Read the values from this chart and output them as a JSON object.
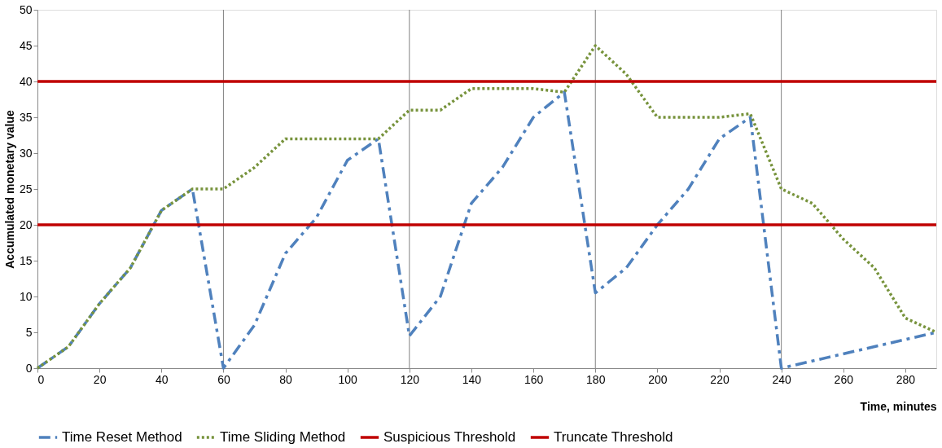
{
  "chart_data": {
    "type": "line",
    "xlabel": "Time, minutes",
    "ylabel": "Accumulated monetary value",
    "xlim": [
      0,
      290
    ],
    "xticks": [
      0,
      20,
      40,
      60,
      80,
      100,
      120,
      140,
      160,
      180,
      200,
      220,
      240,
      260,
      280
    ],
    "ylim": [
      0,
      50
    ],
    "yticks": [
      0,
      5,
      10,
      15,
      20,
      25,
      30,
      35,
      40,
      45,
      50
    ],
    "grid": false,
    "legend": "bottom",
    "marker": "none",
    "series": [
      {
        "name": "Time Reset Method",
        "color": "#4f81bd",
        "line_style": "dashed",
        "x": [
          0,
          10,
          20,
          30,
          40,
          50,
          60,
          70,
          80,
          90,
          100,
          110,
          120,
          130,
          140,
          150,
          160,
          170,
          180,
          190,
          200,
          210,
          220,
          230,
          240,
          290
        ],
        "values": [
          0,
          3,
          9,
          14,
          22,
          25,
          0,
          6,
          16,
          21,
          29,
          32,
          4.5,
          10,
          23,
          28,
          35,
          38.5,
          10.5,
          14,
          20,
          25,
          32,
          35,
          0,
          5
        ]
      },
      {
        "name": "Time Sliding Method",
        "color": "#77933c",
        "line_style": "dotted",
        "x": [
          0,
          10,
          20,
          30,
          40,
          50,
          60,
          70,
          80,
          90,
          100,
          110,
          120,
          130,
          140,
          150,
          160,
          170,
          180,
          190,
          200,
          210,
          220,
          230,
          240,
          250,
          260,
          270,
          280,
          290
        ],
        "values": [
          0,
          3,
          9,
          14,
          22,
          25,
          25,
          28,
          32,
          32,
          32,
          32,
          36,
          36,
          39,
          39,
          39,
          38.5,
          45,
          41,
          35,
          35,
          35,
          35.5,
          25,
          23,
          18,
          14,
          7,
          5
        ]
      }
    ],
    "ref_lines": [
      {
        "axis": "y",
        "value": 20,
        "label": "Suspicious Threshold",
        "color": "#c00000"
      },
      {
        "axis": "y",
        "value": 40,
        "label": "Truncate Threshold",
        "color": "#c00000"
      },
      {
        "axis": "x",
        "value": 60,
        "color": "#808080"
      },
      {
        "axis": "x",
        "value": 120,
        "color": "#808080"
      },
      {
        "axis": "x",
        "value": 180,
        "color": "#808080"
      },
      {
        "axis": "x",
        "value": 240,
        "color": "#808080"
      }
    ]
  }
}
